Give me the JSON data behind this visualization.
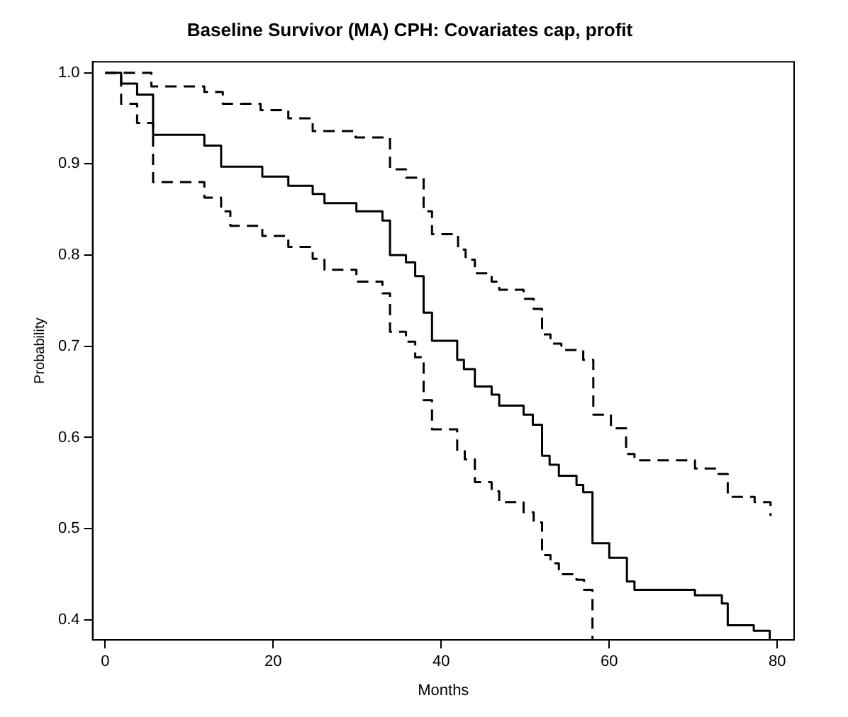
{
  "chart_data": {
    "type": "step",
    "title": "Baseline Survivor (MA) CPH: Covariates cap, profit",
    "xlabel": "Months",
    "ylabel": "Probability",
    "series": [
      {
        "color": "#000000",
        "line_style": "solid",
        "x": [
          0,
          1.9,
          3.8,
          5.7,
          11.8,
          13.8,
          18.7,
          21.8,
          24.7,
          26.1,
          29.9,
          33,
          33.9,
          35.8,
          36.9,
          37.9,
          38.9,
          41.9,
          42.7,
          44,
          46,
          46.9,
          49.8,
          50.9,
          52,
          52.9,
          54,
          56.1,
          56.9,
          58,
          60,
          62.1,
          63,
          70.2,
          73.4,
          74.1,
          77.2,
          79.1
        ],
        "values": [
          1.0,
          0.988,
          0.976,
          0.932,
          0.92,
          0.897,
          0.886,
          0.876,
          0.867,
          0.857,
          0.848,
          0.838,
          0.8,
          0.792,
          0.777,
          0.737,
          0.706,
          0.685,
          0.675,
          0.656,
          0.647,
          0.635,
          0.625,
          0.614,
          0.58,
          0.57,
          0.558,
          0.548,
          0.54,
          0.484,
          0.468,
          0.442,
          0.433,
          0.427,
          0.418,
          0.394,
          0.388,
          0.378
        ]
      },
      {
        "color": "#000000",
        "line_style": "dashed",
        "x": [
          0,
          5.5,
          11.8,
          14,
          18.5,
          21.8,
          24.7,
          29.8,
          33.9,
          35.8,
          37.9,
          38.9,
          42,
          42.9,
          44,
          46,
          46.9,
          49.8,
          51,
          52,
          53,
          54.3,
          56.9,
          58.1,
          60.2,
          62,
          63,
          70.2,
          73,
          74.1,
          77.3,
          79.2
        ],
        "values": [
          1.0,
          0.985,
          0.979,
          0.966,
          0.959,
          0.95,
          0.936,
          0.929,
          0.894,
          0.885,
          0.848,
          0.823,
          0.806,
          0.795,
          0.78,
          0.771,
          0.762,
          0.752,
          0.741,
          0.713,
          0.703,
          0.696,
          0.685,
          0.625,
          0.61,
          0.582,
          0.575,
          0.566,
          0.56,
          0.535,
          0.529,
          0.514
        ]
      },
      {
        "color": "#000000",
        "line_style": "dashed",
        "x": [
          0,
          1.9,
          3.8,
          5.7,
          11.8,
          13.8,
          14.9,
          18.7,
          21.8,
          24.7,
          26.1,
          29.9,
          33,
          33.9,
          35.8,
          36.9,
          37.9,
          38.9,
          41.9,
          42.8,
          44,
          46,
          46.9,
          49.8,
          51,
          52,
          53,
          54,
          56.1,
          57,
          58
        ],
        "values": [
          1.0,
          0.966,
          0.945,
          0.88,
          0.863,
          0.848,
          0.832,
          0.821,
          0.809,
          0.796,
          0.784,
          0.771,
          0.758,
          0.716,
          0.705,
          0.688,
          0.641,
          0.609,
          0.585,
          0.576,
          0.551,
          0.541,
          0.529,
          0.518,
          0.507,
          0.471,
          0.462,
          0.45,
          0.444,
          0.433,
          0.378
        ]
      }
    ],
    "xlim": [
      -1.5,
      82
    ],
    "xticks": [
      0,
      20,
      40,
      60,
      80
    ],
    "ylim": [
      0.378,
      1.012
    ],
    "yticks": [
      0.4,
      0.5,
      0.6,
      0.7,
      0.8,
      0.9,
      {
        "value": 1.0,
        "label": "1.0"
      }
    ],
    "grid": false,
    "legend": false,
    "marker": "none"
  }
}
